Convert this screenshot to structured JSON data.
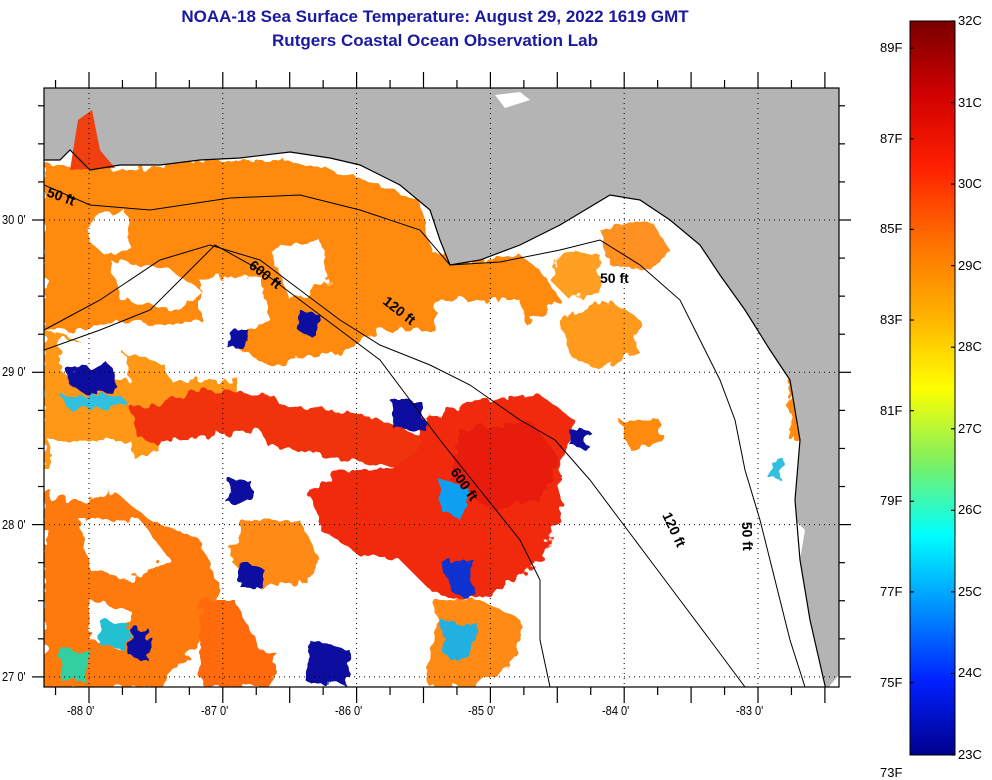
{
  "header": {
    "title": "NOAA-18 Sea Surface Temperature:  August 29, 2022 1619 GMT",
    "subtitle": "Rutgers Coastal Ocean Observation Lab"
  },
  "map": {
    "latitude_labels": [
      "30 0'",
      "29 0'",
      "28 0'",
      "27 0'"
    ],
    "latitudes": [
      30,
      29,
      28,
      27
    ],
    "longitude_labels": [
      "-88 0'",
      "-87 0'",
      "-86 0'",
      "-85 0'",
      "-84 0'",
      "-83 0'"
    ],
    "longitudes": [
      -88,
      -87,
      -86,
      -85,
      -84,
      -83
    ],
    "contours": [
      {
        "label": "50 ft"
      },
      {
        "label": "600 ft"
      },
      {
        "label": "120 ft"
      },
      {
        "label": "50 ft"
      },
      {
        "label": "600 ft"
      },
      {
        "label": "120 ft"
      },
      {
        "label": "50 ft"
      }
    ],
    "colors": {
      "land": "#b4b4b4",
      "no_data": "#ffffff",
      "grid": "#000000"
    }
  },
  "colorbar": {
    "fahrenheit": [
      "89F",
      "87F",
      "85F",
      "83F",
      "81F",
      "79F",
      "77F",
      "75F",
      "73F"
    ],
    "fahrenheit_values": [
      89,
      87,
      85,
      83,
      81,
      79,
      77,
      75,
      73
    ],
    "celsius": [
      "32C",
      "31C",
      "30C",
      "29C",
      "28C",
      "27C",
      "26C",
      "25C",
      "24C",
      "23C"
    ],
    "celsius_values": [
      32,
      31,
      30,
      29,
      28,
      27,
      26,
      25,
      24,
      23
    ],
    "range_c": [
      23,
      32
    ],
    "stops": [
      "#7a0000",
      "#d00000",
      "#ff2000",
      "#ff7000",
      "#ffb000",
      "#ffff00",
      "#80f060",
      "#00ffff",
      "#0090ff",
      "#0020ff",
      "#00008c"
    ]
  }
}
